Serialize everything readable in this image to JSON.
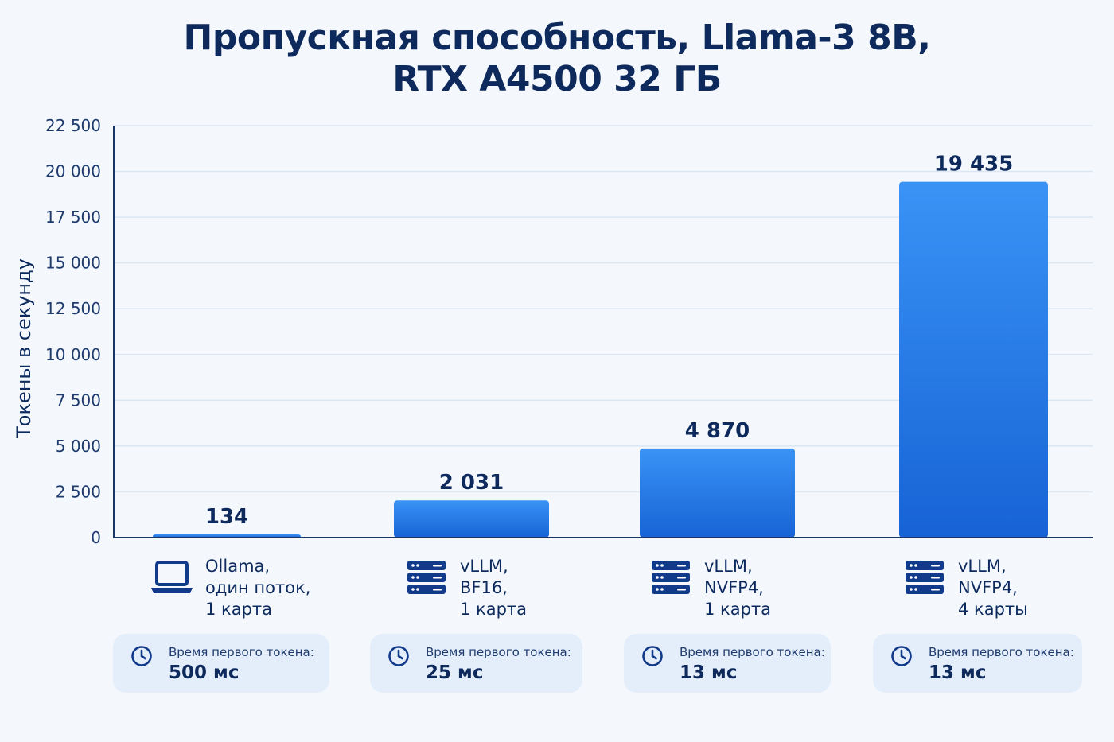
{
  "chart_data": {
    "type": "bar",
    "title_lines": [
      "Пропускная способность, Llama-3 8B,",
      "RTX A4500 32 ГБ"
    ],
    "ylabel": "Токены в секунду",
    "ylim": [
      0,
      22500
    ],
    "yticks": [
      0,
      2500,
      5000,
      7500,
      10000,
      12500,
      15000,
      17500,
      20000,
      22500
    ],
    "ytick_labels": [
      "0",
      "2 500",
      "5 000",
      "7 500",
      "10 000",
      "12 500",
      "15 000",
      "17 500",
      "20 000",
      "22 500"
    ],
    "grid": true,
    "values": [
      134,
      2031,
      4870,
      19435
    ],
    "value_labels": [
      "134",
      "2 031",
      "4 870",
      "19 435"
    ],
    "categories": [
      {
        "lines": [
          "Ollama,",
          "один поток,",
          "1 карта"
        ],
        "icon": "laptop-icon"
      },
      {
        "lines": [
          "vLLM,",
          "BF16,",
          "1 карта"
        ],
        "icon": "server-icon"
      },
      {
        "lines": [
          "vLLM,",
          "NVFP4,",
          "1 карта"
        ],
        "icon": "server-icon"
      },
      {
        "lines": [
          "vLLM,",
          "NVFP4,",
          "4 карты"
        ],
        "icon": "server-icon"
      }
    ],
    "ttft": [
      {
        "label": "Время первого токена:",
        "value": "500 мс"
      },
      {
        "label": "Время первого токена:",
        "value": "25 мс"
      },
      {
        "label": "Время первого токена:",
        "value": "13 мс"
      },
      {
        "label": "Время первого токена:",
        "value": "13 мс"
      }
    ],
    "colors": {
      "bar_top": "#3a93f5",
      "bar_bottom": "#1763d6",
      "axis": "#1a3468",
      "grid": "#dbe6f3",
      "card": "#e4eefa",
      "icon": "#123a8a"
    }
  }
}
